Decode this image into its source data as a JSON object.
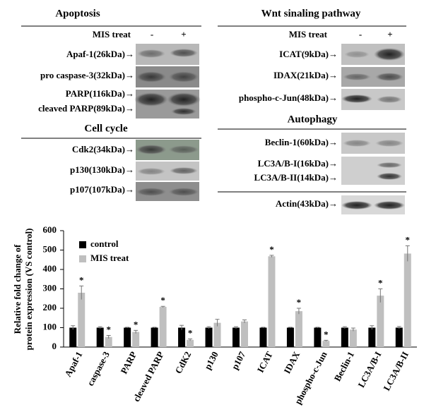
{
  "blots": {
    "left": {
      "title": "Apoptosis",
      "treat_label": "MIS treat",
      "lanes": [
        "-",
        "+"
      ],
      "labels": [
        "Apaf-1(26kDa)→",
        "pro caspase-3(32kDa)→",
        "PARP(116kDa)→",
        "cleaved PARP(89kDa)→"
      ],
      "section2_title": "Cell cycle",
      "section2_labels": [
        "Cdk2(34kDa)→",
        "p130(130kDa)→",
        "p107(107kDa)→"
      ]
    },
    "right": {
      "title": "Wnt sinaling pathway",
      "treat_label": "MIS treat",
      "lanes": [
        "-",
        "+"
      ],
      "labels": [
        "ICAT(9kDa)→",
        "IDAX(21kDa)→",
        "phospho-c-Jun(48kDa)→"
      ],
      "section2_title": "Autophagy",
      "section2_labels": [
        "Beclin-1(60kDa)→",
        "LC3A/B-I(16kDa)→",
        "LC3A/B-II(14kDa)→"
      ],
      "loading_label": "Actin(43kDa)→"
    }
  },
  "chart_data": {
    "type": "bar",
    "ylabel": [
      "Relative fold change of",
      "protein expression (VS control)"
    ],
    "categories": [
      "Apaf-1",
      "caspase-3",
      "PARP",
      "cleaved PARP",
      "CdK2",
      "p130",
      "p107",
      "ICAT",
      "IDAX",
      "phospho-c-Jun",
      "Beclin-1",
      "LC3A/B-I",
      "LC3A/B-II"
    ],
    "series": [
      {
        "name": "control",
        "color": "#000000",
        "values": [
          100,
          100,
          100,
          100,
          100,
          100,
          100,
          100,
          100,
          100,
          100,
          100,
          100
        ],
        "errors": [
          10,
          5,
          2,
          2,
          12,
          5,
          5,
          2,
          2,
          2,
          5,
          10,
          6
        ]
      },
      {
        "name": "MIS treat",
        "color": "#bfbfbf",
        "values": [
          280,
          52,
          78,
          207,
          37,
          125,
          132,
          468,
          185,
          32,
          90,
          265,
          482
        ],
        "errors": [
          35,
          8,
          8,
          3,
          5,
          18,
          8,
          5,
          15,
          3,
          8,
          35,
          40
        ],
        "significance": [
          "*",
          "*",
          "*",
          "*",
          "*",
          null,
          null,
          "*",
          "*",
          "*",
          null,
          "*",
          "*"
        ]
      }
    ],
    "ylim": [
      0,
      600
    ],
    "yticks": [
      0,
      100,
      200,
      300,
      400,
      500,
      600
    ],
    "grid": false
  }
}
